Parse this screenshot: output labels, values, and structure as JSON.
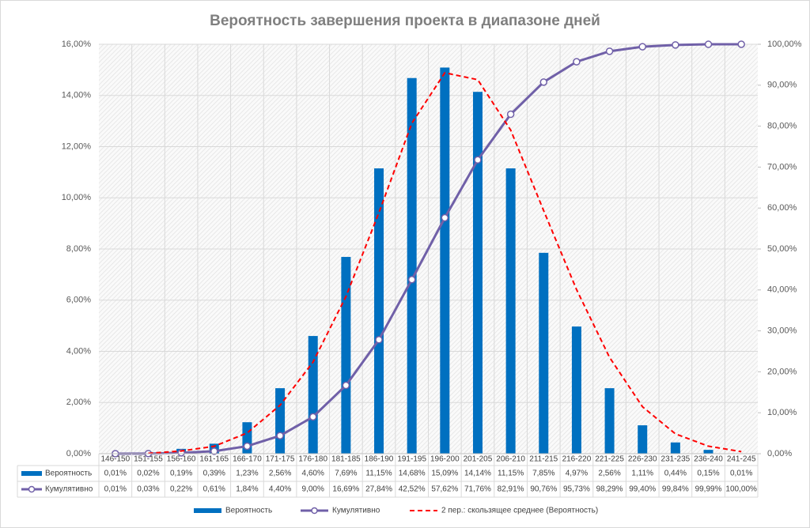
{
  "chart_data": {
    "type": "bar",
    "title": "Вероятность завершения проекта в диапазоне дней",
    "categories": [
      "146-150",
      "151-155",
      "156-160",
      "161-165",
      "166-170",
      "171-175",
      "176-180",
      "181-185",
      "186-190",
      "191-195",
      "196-200",
      "201-205",
      "206-210",
      "211-215",
      "216-220",
      "221-225",
      "226-230",
      "231-235",
      "236-240",
      "241-245"
    ],
    "series": [
      {
        "name": "Вероятность",
        "type": "bar",
        "color": "#0070c0",
        "values": [
          0.01,
          0.02,
          0.19,
          0.39,
          1.23,
          2.56,
          4.6,
          7.69,
          11.15,
          14.68,
          15.09,
          14.14,
          11.15,
          7.85,
          4.97,
          2.56,
          1.11,
          0.44,
          0.15,
          0.01
        ],
        "value_labels": [
          "0,01%",
          "0,02%",
          "0,19%",
          "0,39%",
          "1,23%",
          "2,56%",
          "4,60%",
          "7,69%",
          "11,15%",
          "14,68%",
          "15,09%",
          "14,14%",
          "11,15%",
          "7,85%",
          "4,97%",
          "2,56%",
          "1,11%",
          "0,44%",
          "0,15%",
          "0,01%"
        ]
      },
      {
        "name": "Кумулятивно",
        "type": "line",
        "axis": "y2",
        "marker": "circle",
        "color": "#7060a8",
        "values": [
          0.01,
          0.03,
          0.22,
          0.61,
          1.84,
          4.4,
          9.0,
          16.69,
          27.84,
          42.52,
          57.62,
          71.76,
          82.91,
          90.76,
          95.73,
          98.29,
          99.4,
          99.84,
          99.99,
          100.0
        ],
        "value_labels": [
          "0,01%",
          "0,03%",
          "0,22%",
          "0,61%",
          "1,84%",
          "4,40%",
          "9,00%",
          "16,69%",
          "27,84%",
          "42,52%",
          "57,62%",
          "71,76%",
          "82,91%",
          "90,76%",
          "95,73%",
          "98,29%",
          "99,40%",
          "99,84%",
          "99,99%",
          "100,00%"
        ]
      },
      {
        "name": "2 пер.: скользящее среднее (Вероятность)",
        "type": "line",
        "dash": true,
        "color": "#ff0000",
        "values": [
          null,
          0.015,
          0.105,
          0.29,
          0.81,
          1.895,
          3.58,
          6.145,
          9.42,
          12.915,
          14.885,
          14.615,
          12.645,
          9.5,
          6.41,
          3.765,
          1.835,
          0.775,
          0.295,
          0.08
        ]
      }
    ],
    "ylim": [
      0,
      16
    ],
    "yticks": [
      {
        "value": 0,
        "label": "0,00%"
      },
      {
        "value": 2,
        "label": "2,00%"
      },
      {
        "value": 4,
        "label": "4,00%"
      },
      {
        "value": 6,
        "label": "6,00%"
      },
      {
        "value": 8,
        "label": "8,00%"
      },
      {
        "value": 10,
        "label": "10,00%"
      },
      {
        "value": 12,
        "label": "12,00%"
      },
      {
        "value": 14,
        "label": "14,00%"
      },
      {
        "value": 16,
        "label": "16,00%"
      }
    ],
    "y2lim": [
      0,
      100
    ],
    "y2ticks": [
      {
        "value": 0,
        "label": "0,00%"
      },
      {
        "value": 10,
        "label": "10,00%"
      },
      {
        "value": 20,
        "label": "20,00%"
      },
      {
        "value": 30,
        "label": "30,00%"
      },
      {
        "value": 40,
        "label": "40,00%"
      },
      {
        "value": 50,
        "label": "50,00%"
      },
      {
        "value": 60,
        "label": "60,00%"
      },
      {
        "value": 70,
        "label": "70,00%"
      },
      {
        "value": 80,
        "label": "80,00%"
      },
      {
        "value": 90,
        "label": "90,00%"
      },
      {
        "value": 100,
        "label": "100,00%"
      }
    ],
    "grid": true,
    "data_table": true,
    "legend": "bottom"
  }
}
